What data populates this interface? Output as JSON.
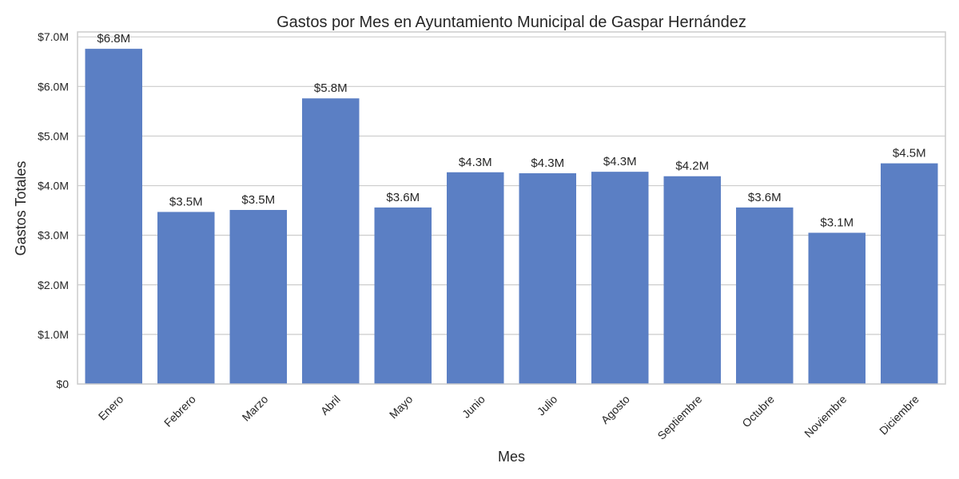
{
  "chart_data": {
    "type": "bar",
    "title": "Gastos por Mes en Ayuntamiento Municipal de Gaspar Hernández",
    "xlabel": "Mes",
    "ylabel": "Gastos Totales",
    "categories": [
      "Enero",
      "Febrero",
      "Marzo",
      "Abril",
      "Mayo",
      "Junio",
      "Julio",
      "Agosto",
      "Septiembre",
      "Octubre",
      "Noviembre",
      "Diciembre"
    ],
    "values": [
      6760000,
      3470000,
      3510000,
      5760000,
      3560000,
      4270000,
      4250000,
      4280000,
      4190000,
      3560000,
      3050000,
      4450000
    ],
    "data_labels": [
      "$6.8M",
      "$3.5M",
      "$3.5M",
      "$5.8M",
      "$3.6M",
      "$4.3M",
      "$4.3M",
      "$4.3M",
      "$4.2M",
      "$3.6M",
      "$3.1M",
      "$4.5M"
    ],
    "ylim": [
      0,
      7100000
    ],
    "yticks": [
      0,
      1000000,
      2000000,
      3000000,
      4000000,
      5000000,
      6000000,
      7000000
    ],
    "ytick_labels": [
      "$0",
      "$1.0M",
      "$2.0M",
      "$3.0M",
      "$4.0M",
      "$5.0M",
      "$6.0M",
      "$7.0M"
    ],
    "grid": "horizontal",
    "bar_color": "#5b7fc4"
  }
}
